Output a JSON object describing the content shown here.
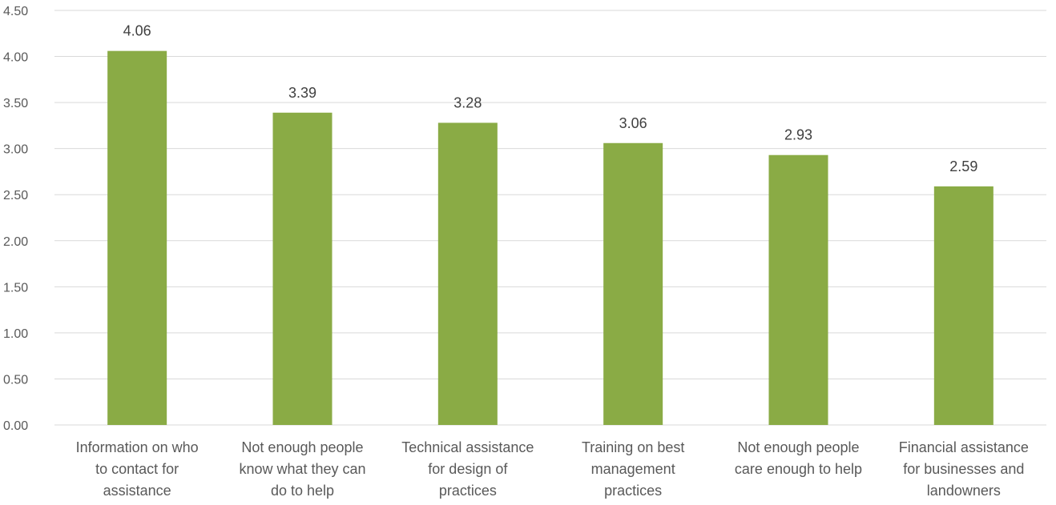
{
  "chart_data": {
    "type": "bar",
    "title": "",
    "xlabel": "",
    "ylabel": "",
    "ylim": [
      0,
      4.5
    ],
    "yticks": [
      "0.00",
      "0.50",
      "1.00",
      "1.50",
      "2.00",
      "2.50",
      "3.00",
      "3.50",
      "4.00",
      "4.50"
    ],
    "grid": true,
    "legend": "none",
    "bar_color": "#8aab45",
    "categories": [
      [
        "Information on who",
        "to contact for",
        "assistance"
      ],
      [
        "Not enough people",
        "know what they can",
        "do to help"
      ],
      [
        "Technical assistance",
        "for design of",
        "practices"
      ],
      [
        "Training on best",
        "management",
        "practices"
      ],
      [
        "Not enough people",
        "care enough to help"
      ],
      [
        "Financial assistance",
        "for businesses and",
        "landowners"
      ]
    ],
    "values": [
      4.06,
      3.39,
      3.28,
      3.06,
      2.93,
      2.59
    ],
    "data_labels": [
      "4.06",
      "3.39",
      "3.28",
      "3.06",
      "2.93",
      "2.59"
    ]
  }
}
